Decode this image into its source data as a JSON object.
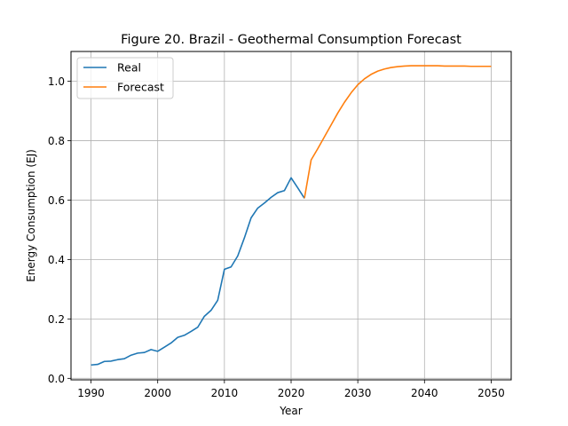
{
  "chart_data": {
    "type": "line",
    "title": "Figure 20. Brazil - Geothermal Consumption Forecast",
    "xlabel": "Year",
    "ylabel": "Energy Consumption (EJ)",
    "xlim": [
      1987,
      2053
    ],
    "ylim": [
      -0.005,
      1.1
    ],
    "xticks": [
      1990,
      2000,
      2010,
      2020,
      2030,
      2040,
      2050
    ],
    "yticks": [
      0.0,
      0.2,
      0.4,
      0.6,
      0.8,
      1.0
    ],
    "grid": true,
    "legend_position": "top-left",
    "series": [
      {
        "name": "Real",
        "color": "#1f77b4",
        "x": [
          1990,
          1991,
          1992,
          1993,
          1994,
          1995,
          1996,
          1997,
          1998,
          1999,
          2000,
          2001,
          2002,
          2003,
          2004,
          2005,
          2006,
          2007,
          2008,
          2009,
          2010,
          2011,
          2012,
          2013,
          2014,
          2015,
          2016,
          2017,
          2018,
          2019,
          2020,
          2021,
          2022
        ],
        "y": [
          0.045,
          0.047,
          0.057,
          0.058,
          0.063,
          0.066,
          0.078,
          0.085,
          0.087,
          0.097,
          0.091,
          0.105,
          0.119,
          0.138,
          0.145,
          0.158,
          0.172,
          0.209,
          0.229,
          0.263,
          0.367,
          0.375,
          0.412,
          0.473,
          0.54,
          0.573,
          0.59,
          0.609,
          0.625,
          0.632,
          0.675,
          0.641,
          0.606
        ]
      },
      {
        "name": "Forecast",
        "color": "#ff7f0e",
        "x": [
          2022,
          2023,
          2024,
          2025,
          2026,
          2027,
          2028,
          2029,
          2030,
          2031,
          2032,
          2033,
          2034,
          2035,
          2036,
          2037,
          2038,
          2039,
          2040,
          2041,
          2042,
          2043,
          2044,
          2045,
          2046,
          2047,
          2048,
          2049,
          2050
        ],
        "y": [
          0.606,
          0.735,
          0.773,
          0.813,
          0.853,
          0.893,
          0.929,
          0.961,
          0.988,
          1.008,
          1.023,
          1.034,
          1.041,
          1.046,
          1.049,
          1.051,
          1.052,
          1.052,
          1.052,
          1.052,
          1.052,
          1.051,
          1.051,
          1.051,
          1.051,
          1.05,
          1.05,
          1.05,
          1.05
        ]
      }
    ]
  }
}
